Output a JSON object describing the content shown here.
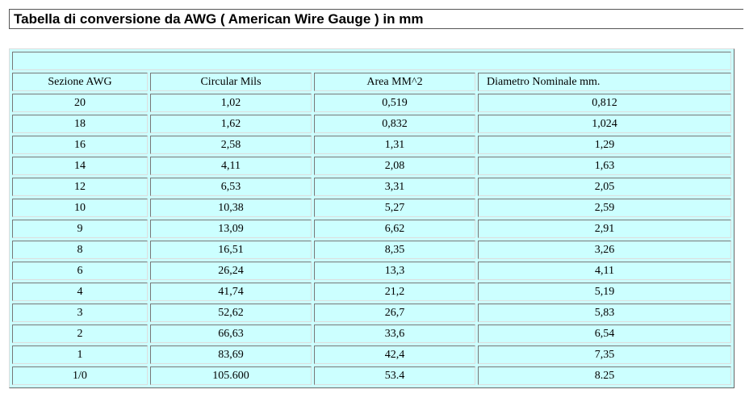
{
  "title": "Tabella di conversione da AWG ( American Wire Gauge ) in mm",
  "table": {
    "header": [
      "Sezione AWG",
      "Circular Mils",
      "Area MM^2",
      "Diametro Nominale mm."
    ],
    "rows": [
      [
        "20",
        "1,02",
        "0,519",
        "0,812"
      ],
      [
        "18",
        "1,62",
        "0,832",
        "1,024"
      ],
      [
        "16",
        "2,58",
        "1,31",
        "1,29"
      ],
      [
        "14",
        "4,11",
        "2,08",
        "1,63"
      ],
      [
        "12",
        "6,53",
        "3,31",
        "2,05"
      ],
      [
        "10",
        "10,38",
        "5,27",
        "2,59"
      ],
      [
        "9",
        "13,09",
        "6,62",
        "2,91"
      ],
      [
        "8",
        "16,51",
        "8,35",
        "3,26"
      ],
      [
        "6",
        "26,24",
        "13,3",
        "4,11"
      ],
      [
        "4",
        "41,74",
        "21,2",
        "5,19"
      ],
      [
        "3",
        "52,62",
        "26,7",
        "5,83"
      ],
      [
        "2",
        "66,63",
        "33,6",
        "6,54"
      ],
      [
        "1",
        "83,69",
        "42,4",
        "7,35"
      ],
      [
        "1/0",
        "105.600",
        "53.4",
        "8.25"
      ]
    ]
  }
}
